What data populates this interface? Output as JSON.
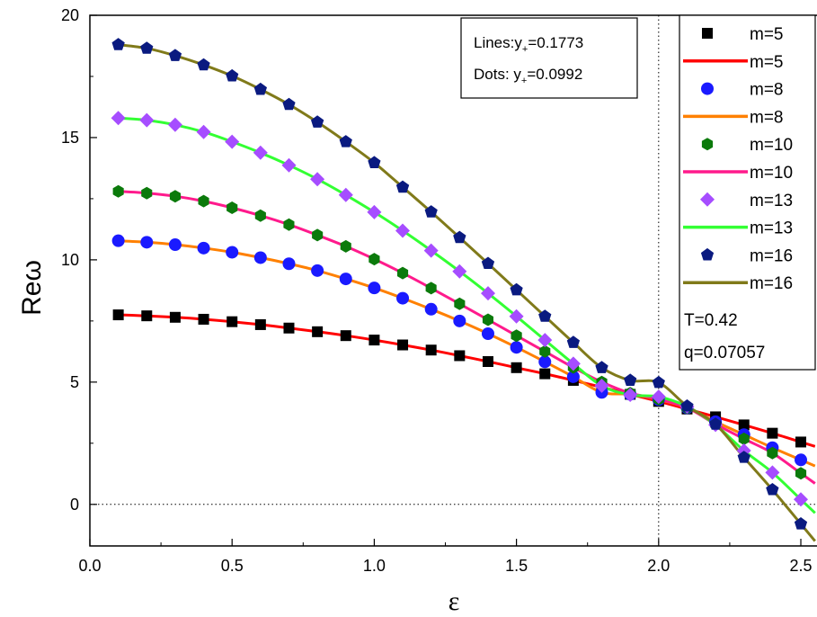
{
  "chart_data": {
    "type": "line",
    "xlabel": "ε",
    "ylabel": "Reω",
    "xlim": [
      0.0,
      2.56
    ],
    "ylim": [
      -1.7,
      20.0
    ],
    "x_ticks": [
      "0.0",
      "0.5",
      "1.0",
      "1.5",
      "2.0",
      "2.5"
    ],
    "x_tick_values": [
      0.0,
      0.5,
      1.0,
      1.5,
      2.0,
      2.5
    ],
    "y_ticks": [
      "0",
      "5",
      "10",
      "15",
      "20"
    ],
    "y_tick_values": [
      0,
      5,
      10,
      15,
      20
    ],
    "reference_lines": {
      "vertical_x": 2.0,
      "horizontal_y": 0
    },
    "annotation_box": {
      "line1_prefix": "Lines:y",
      "line1_sub": "+",
      "line1_value": "=0.1773",
      "line2_prefix": "Dots: y",
      "line2_sub": "+",
      "line2_value": "=0.0992"
    },
    "params": {
      "T": "T=0.42",
      "q": "q=0.07057"
    },
    "legend_position": "right",
    "legend": [
      {
        "label": "m=5",
        "kind": "marker",
        "marker": "square",
        "color": "#000000"
      },
      {
        "label": "m=5",
        "kind": "line",
        "color": "#ff0000"
      },
      {
        "label": "m=8",
        "kind": "marker",
        "marker": "circle",
        "color": "#1a1aff"
      },
      {
        "label": "m=8",
        "kind": "line",
        "color": "#ff8000"
      },
      {
        "label": "m=10",
        "kind": "marker",
        "marker": "hexagon",
        "color": "#0b7a0b"
      },
      {
        "label": "m=10",
        "kind": "line",
        "color": "#ff1a8c"
      },
      {
        "label": "m=13",
        "kind": "marker",
        "marker": "diamond",
        "color": "#a64dff"
      },
      {
        "label": "m=13",
        "kind": "line",
        "color": "#33ff33"
      },
      {
        "label": "m=16",
        "kind": "marker",
        "marker": "pentagon",
        "color": "#0a1a80"
      },
      {
        "label": "m=16",
        "kind": "line",
        "color": "#807a1a"
      }
    ],
    "x": [
      0.1,
      0.2,
      0.3,
      0.4,
      0.5,
      0.6,
      0.7,
      0.8,
      0.9,
      1.0,
      1.1,
      1.2,
      1.3,
      1.4,
      1.5,
      1.6,
      1.7,
      1.8,
      1.9,
      2.0,
      2.1,
      2.2,
      2.3,
      2.4,
      2.5
    ],
    "series": [
      {
        "name": "m=5",
        "values": [
          7.75,
          7.71,
          7.65,
          7.57,
          7.47,
          7.35,
          7.21,
          7.06,
          6.9,
          6.72,
          6.52,
          6.31,
          6.08,
          5.84,
          5.59,
          5.34,
          5.07,
          4.79,
          4.5,
          4.21,
          3.9,
          3.58,
          3.25,
          2.91,
          2.55
        ]
      },
      {
        "name": "m=8",
        "values": [
          10.78,
          10.72,
          10.62,
          10.48,
          10.31,
          10.09,
          9.84,
          9.56,
          9.22,
          8.85,
          8.43,
          7.98,
          7.5,
          6.98,
          6.42,
          5.83,
          5.22,
          4.58,
          4.5,
          4.28,
          3.95,
          3.38,
          2.85,
          2.32,
          1.82
        ]
      },
      {
        "name": "m=10",
        "values": [
          12.8,
          12.73,
          12.6,
          12.4,
          12.13,
          11.81,
          11.44,
          11.01,
          10.55,
          10.03,
          9.46,
          8.84,
          8.2,
          7.55,
          6.9,
          6.25,
          5.6,
          5.0,
          4.55,
          4.3,
          3.95,
          3.28,
          2.68,
          2.1,
          1.27
        ]
      },
      {
        "name": "m=13",
        "values": [
          15.8,
          15.71,
          15.52,
          15.23,
          14.83,
          14.38,
          13.87,
          13.3,
          12.65,
          11.95,
          11.19,
          10.38,
          9.53,
          8.63,
          7.69,
          6.72,
          5.75,
          4.85,
          4.48,
          4.4,
          4.0,
          3.25,
          2.2,
          1.3,
          0.2
        ]
      },
      {
        "name": "m=16",
        "values": [
          18.8,
          18.65,
          18.35,
          17.97,
          17.52,
          16.97,
          16.35,
          15.63,
          14.83,
          13.97,
          12.97,
          11.96,
          10.91,
          9.85,
          8.77,
          7.69,
          6.62,
          5.59,
          5.07,
          4.98,
          4.02,
          3.28,
          1.92,
          0.6,
          -0.8
        ]
      }
    ]
  }
}
